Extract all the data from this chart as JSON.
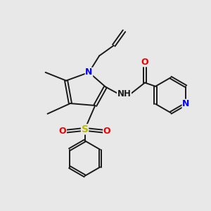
{
  "bg_color": "#e8e8e8",
  "bond_color": "#1a1a1a",
  "bond_width": 1.4,
  "N_color": "#0000ee",
  "O_color": "#ee0000",
  "S_color": "#bbbb00",
  "figsize": [
    3.0,
    3.0
  ],
  "dpi": 100,
  "xlim": [
    0,
    10
  ],
  "ylim": [
    0,
    10
  ]
}
